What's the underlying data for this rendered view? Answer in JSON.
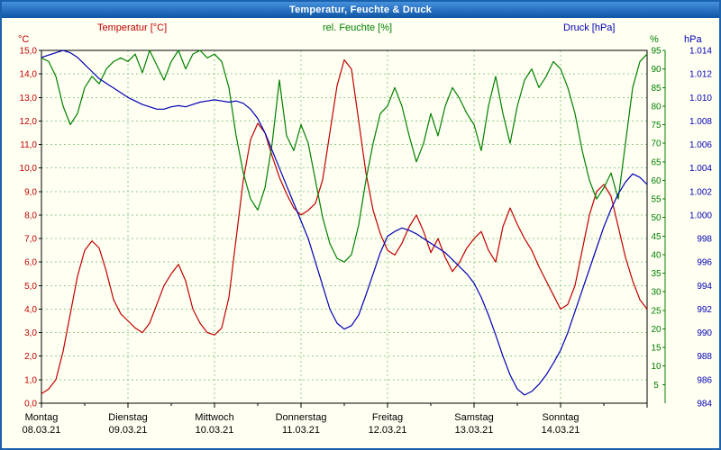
{
  "window": {
    "title": "Temperatur, Feuchte & Druck"
  },
  "header": {
    "temp_label": "Temperatur [°C]",
    "humidity_label": "rel. Feuchte [%]",
    "pressure_label": "Druck [hPa]"
  },
  "axis_units": {
    "left": "°C",
    "pct": "%",
    "hpa": "hPa"
  },
  "colors": {
    "temp": "#c00000",
    "humidity": "#008000",
    "pressure": "#0000b4",
    "grid": "#8fce8f",
    "frame": "#000000",
    "axis_text": "#000000",
    "page_bg": "#fffff2",
    "window_border": "#1a61ae"
  },
  "chart_data": {
    "type": "line",
    "title": "Temperatur, Feuchte & Druck",
    "x_hours_step": 2,
    "total_hours": 168,
    "grid": true,
    "x_ticks": [
      {
        "weekday": "Montag",
        "date": "08.03.21"
      },
      {
        "weekday": "Dienstag",
        "date": "09.03.21"
      },
      {
        "weekday": "Mittwoch",
        "date": "10.03.21"
      },
      {
        "weekday": "Donnerstag",
        "date": "11.03.21"
      },
      {
        "weekday": "Freitag",
        "date": "12.03.21"
      },
      {
        "weekday": "Samstag",
        "date": "13.03.21"
      },
      {
        "weekday": "Sonntag",
        "date": "14.03.21"
      }
    ],
    "axes": {
      "left": {
        "unit": "°C",
        "min": 0,
        "max": 15,
        "labels": [
          "15,0",
          "14,0",
          "13,0",
          "12,0",
          "11,0",
          "10,0",
          "9,0",
          "8,0",
          "7,0",
          "6,0",
          "5,0",
          "4,0",
          "3,0",
          "2,0",
          "1,0",
          "0,0"
        ]
      },
      "pct": {
        "unit": "%",
        "min": 0,
        "max": 95,
        "labels": [
          "95",
          "90",
          "85",
          "80",
          "75",
          "70",
          "65",
          "60",
          "55",
          "50",
          "45",
          "40",
          "35",
          "30",
          "25",
          "20",
          "15",
          "10",
          "5"
        ]
      },
      "hpa": {
        "unit": "hPa",
        "min": 984,
        "max": 1014,
        "labels": [
          "1.014",
          "1.012",
          "1.010",
          "1.008",
          "1.006",
          "1.004",
          "1.002",
          "1.000",
          "998",
          "996",
          "994",
          "992",
          "990",
          "988",
          "986",
          "984"
        ]
      }
    },
    "series": [
      {
        "id": "temperature",
        "name": "Temperatur [°C]",
        "axis": "left",
        "color": "#c00000",
        "values": [
          0.4,
          0.6,
          1.0,
          2.2,
          3.8,
          5.4,
          6.5,
          6.9,
          6.6,
          5.6,
          4.4,
          3.8,
          3.5,
          3.2,
          3.0,
          3.4,
          4.2,
          5.0,
          5.5,
          5.9,
          5.2,
          4.0,
          3.4,
          3.0,
          2.9,
          3.2,
          4.5,
          7.0,
          9.5,
          11.2,
          11.9,
          11.5,
          10.5,
          9.6,
          8.9,
          8.3,
          8.0,
          8.2,
          8.5,
          9.5,
          11.5,
          13.5,
          14.6,
          14.2,
          12.0,
          9.8,
          8.2,
          7.2,
          6.5,
          6.3,
          6.8,
          7.5,
          8.0,
          7.3,
          6.4,
          7.0,
          6.2,
          5.6,
          6.0,
          6.6,
          7.0,
          7.3,
          6.5,
          6.0,
          7.5,
          8.3,
          7.6,
          7.0,
          6.5,
          5.8,
          5.2,
          4.6,
          4.0,
          4.2,
          5.0,
          6.5,
          8.0,
          9.0,
          9.3,
          8.8,
          7.5,
          6.2,
          5.2,
          4.4,
          4.0
        ]
      },
      {
        "id": "humidity",
        "name": "rel. Feuchte [%]",
        "axis": "pct",
        "color": "#008000",
        "values": [
          93,
          92,
          88,
          80,
          75,
          78,
          85,
          88,
          86,
          90,
          92,
          93,
          92,
          94,
          89,
          95,
          91,
          87,
          92,
          95,
          90,
          94,
          95,
          93,
          94,
          92,
          85,
          72,
          62,
          55,
          52,
          58,
          70,
          87,
          72,
          68,
          75,
          70,
          60,
          50,
          43,
          39,
          38,
          40,
          48,
          60,
          70,
          78,
          80,
          85,
          80,
          72,
          65,
          70,
          78,
          72,
          80,
          85,
          82,
          78,
          75,
          68,
          80,
          88,
          78,
          70,
          80,
          87,
          90,
          85,
          88,
          92,
          90,
          85,
          78,
          68,
          60,
          55,
          58,
          62,
          55,
          70,
          85,
          92,
          94
        ]
      },
      {
        "id": "pressure",
        "name": "Druck [hPa]",
        "axis": "hpa",
        "color": "#0000b4",
        "values": [
          1013.4,
          1013.6,
          1013.8,
          1014.0,
          1013.8,
          1013.4,
          1012.8,
          1012.2,
          1011.6,
          1011.2,
          1010.8,
          1010.4,
          1010.0,
          1009.7,
          1009.4,
          1009.2,
          1009.0,
          1009.0,
          1009.2,
          1009.3,
          1009.2,
          1009.4,
          1009.6,
          1009.7,
          1009.8,
          1009.7,
          1009.6,
          1009.7,
          1009.5,
          1009.0,
          1008.2,
          1007.0,
          1005.5,
          1004.0,
          1002.5,
          1001.0,
          999.5,
          998.0,
          996.0,
          994.0,
          992.0,
          990.8,
          990.3,
          990.6,
          991.5,
          993.2,
          995.0,
          996.8,
          998.2,
          998.6,
          998.9,
          998.7,
          998.4,
          998.0,
          997.6,
          997.2,
          996.8,
          996.2,
          995.6,
          995.0,
          994.2,
          993.0,
          991.5,
          989.8,
          988.0,
          986.4,
          985.2,
          984.7,
          985.0,
          985.6,
          986.4,
          987.4,
          988.5,
          990.0,
          991.8,
          993.6,
          995.4,
          997.2,
          999.0,
          1000.5,
          1001.8,
          1002.8,
          1003.5,
          1003.2,
          1002.6
        ]
      }
    ]
  }
}
